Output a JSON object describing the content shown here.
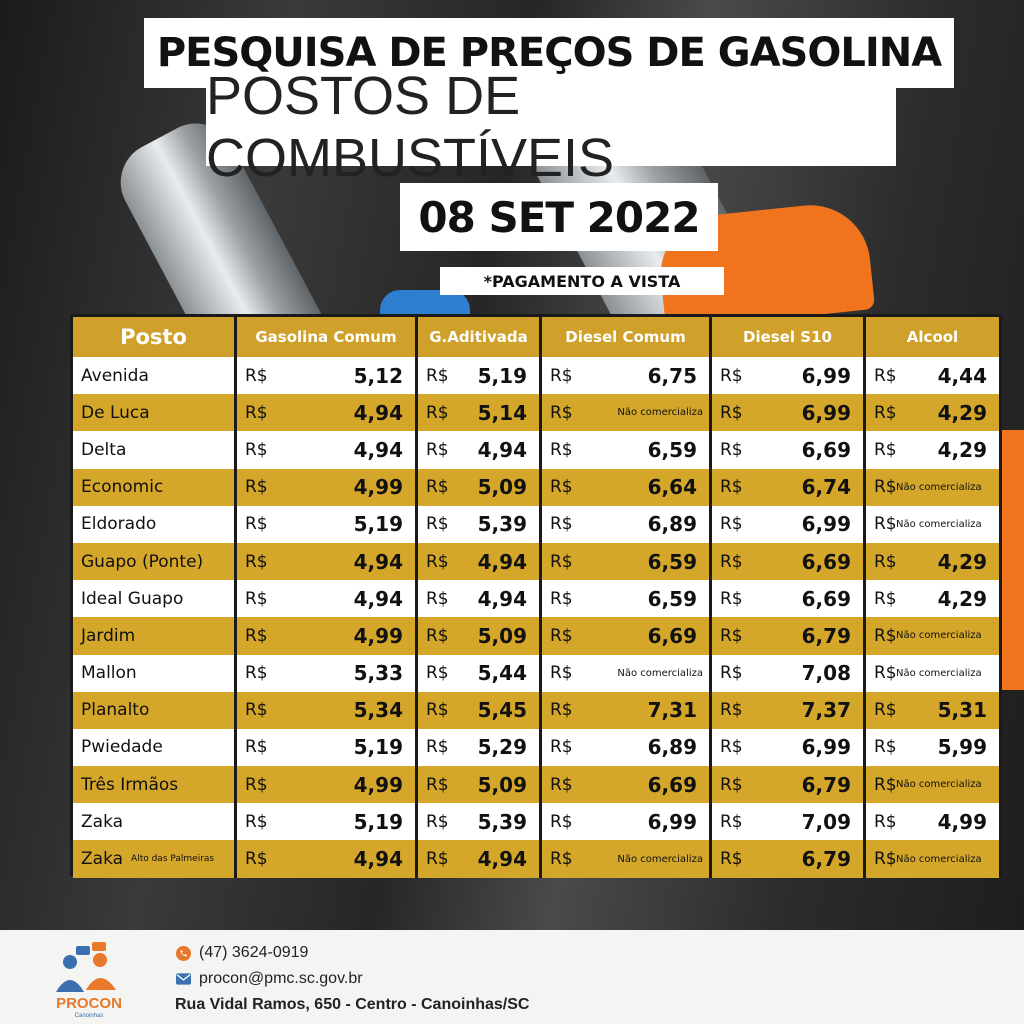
{
  "title": {
    "line1": "PESQUISA DE PREÇOS DE GASOLINA",
    "line2": "POSTOS DE COMBUSTÍVEIS",
    "date": "08 SET 2022",
    "note": "*PAGAMENTO A VISTA"
  },
  "table": {
    "headers": [
      "Posto",
      "Gasolina Comum",
      "G.Aditivada",
      "Diesel Comum",
      "Diesel  S10",
      "Alcool"
    ],
    "currency": "R$",
    "rows": [
      {
        "posto": "Avenida",
        "sub": "",
        "v": [
          "5,12",
          "5,19",
          "6,75",
          "6,99",
          "4,44"
        ]
      },
      {
        "posto": "De Luca",
        "sub": "",
        "v": [
          "4,94",
          "5,14",
          "Não comercializa",
          "6,99",
          "4,29"
        ]
      },
      {
        "posto": "Delta",
        "sub": "",
        "v": [
          "4,94",
          "4,94",
          "6,59",
          "6,69",
          "4,29"
        ]
      },
      {
        "posto": "Economic",
        "sub": "",
        "v": [
          "4,99",
          "5,09",
          "6,64",
          "6,74",
          "Não comercializa"
        ]
      },
      {
        "posto": "Eldorado",
        "sub": "",
        "v": [
          "5,19",
          "5,39",
          "6,89",
          "6,99",
          "Não comercializa"
        ]
      },
      {
        "posto": "Guapo (Ponte)",
        "sub": "",
        "v": [
          "4,94",
          "4,94",
          "6,59",
          "6,69",
          "4,29"
        ]
      },
      {
        "posto": "Ideal Guapo",
        "sub": "",
        "v": [
          "4,94",
          "4,94",
          "6,59",
          "6,69",
          "4,29"
        ]
      },
      {
        "posto": "Jardim",
        "sub": "",
        "v": [
          "4,99",
          "5,09",
          "6,69",
          "6,79",
          "Não comercializa"
        ]
      },
      {
        "posto": "Mallon",
        "sub": "",
        "v": [
          "5,33",
          "5,44",
          "Não comercializa",
          "7,08",
          "Não comercializa"
        ]
      },
      {
        "posto": "Planalto",
        "sub": "",
        "v": [
          "5,34",
          "5,45",
          "7,31",
          "7,37",
          "5,31"
        ]
      },
      {
        "posto": "Pwiedade",
        "sub": "",
        "v": [
          "5,19",
          "5,29",
          "6,89",
          "6,99",
          "5,99"
        ]
      },
      {
        "posto": "Três Irmãos",
        "sub": "",
        "v": [
          "4,99",
          "5,09",
          "6,69",
          "6,79",
          "Não comercializa"
        ]
      },
      {
        "posto": "Zaka",
        "sub": "",
        "v": [
          "5,19",
          "5,39",
          "6,99",
          "7,09",
          "4,99"
        ]
      },
      {
        "posto": "Zaka",
        "sub": "Alto das Palmeiras",
        "v": [
          "4,94",
          "4,94",
          "Não comercializa",
          "6,79",
          "Não comercializa"
        ]
      }
    ]
  },
  "footer": {
    "phone": "(47) 3624-0919",
    "email": "procon@pmc.sc.gov.br",
    "address": "Rua Vidal Ramos, 650 - Centro - Canoinhas/SC",
    "logo_text": "PROCON",
    "logo_sub": "Canoinhas"
  },
  "colors": {
    "gold": "#d4a62a",
    "header_gold": "#cfa02a",
    "logo_blue": "#3a6fb0",
    "logo_orange": "#e8782a"
  },
  "icons": {
    "phone": "phone-icon",
    "email": "envelope-icon"
  }
}
